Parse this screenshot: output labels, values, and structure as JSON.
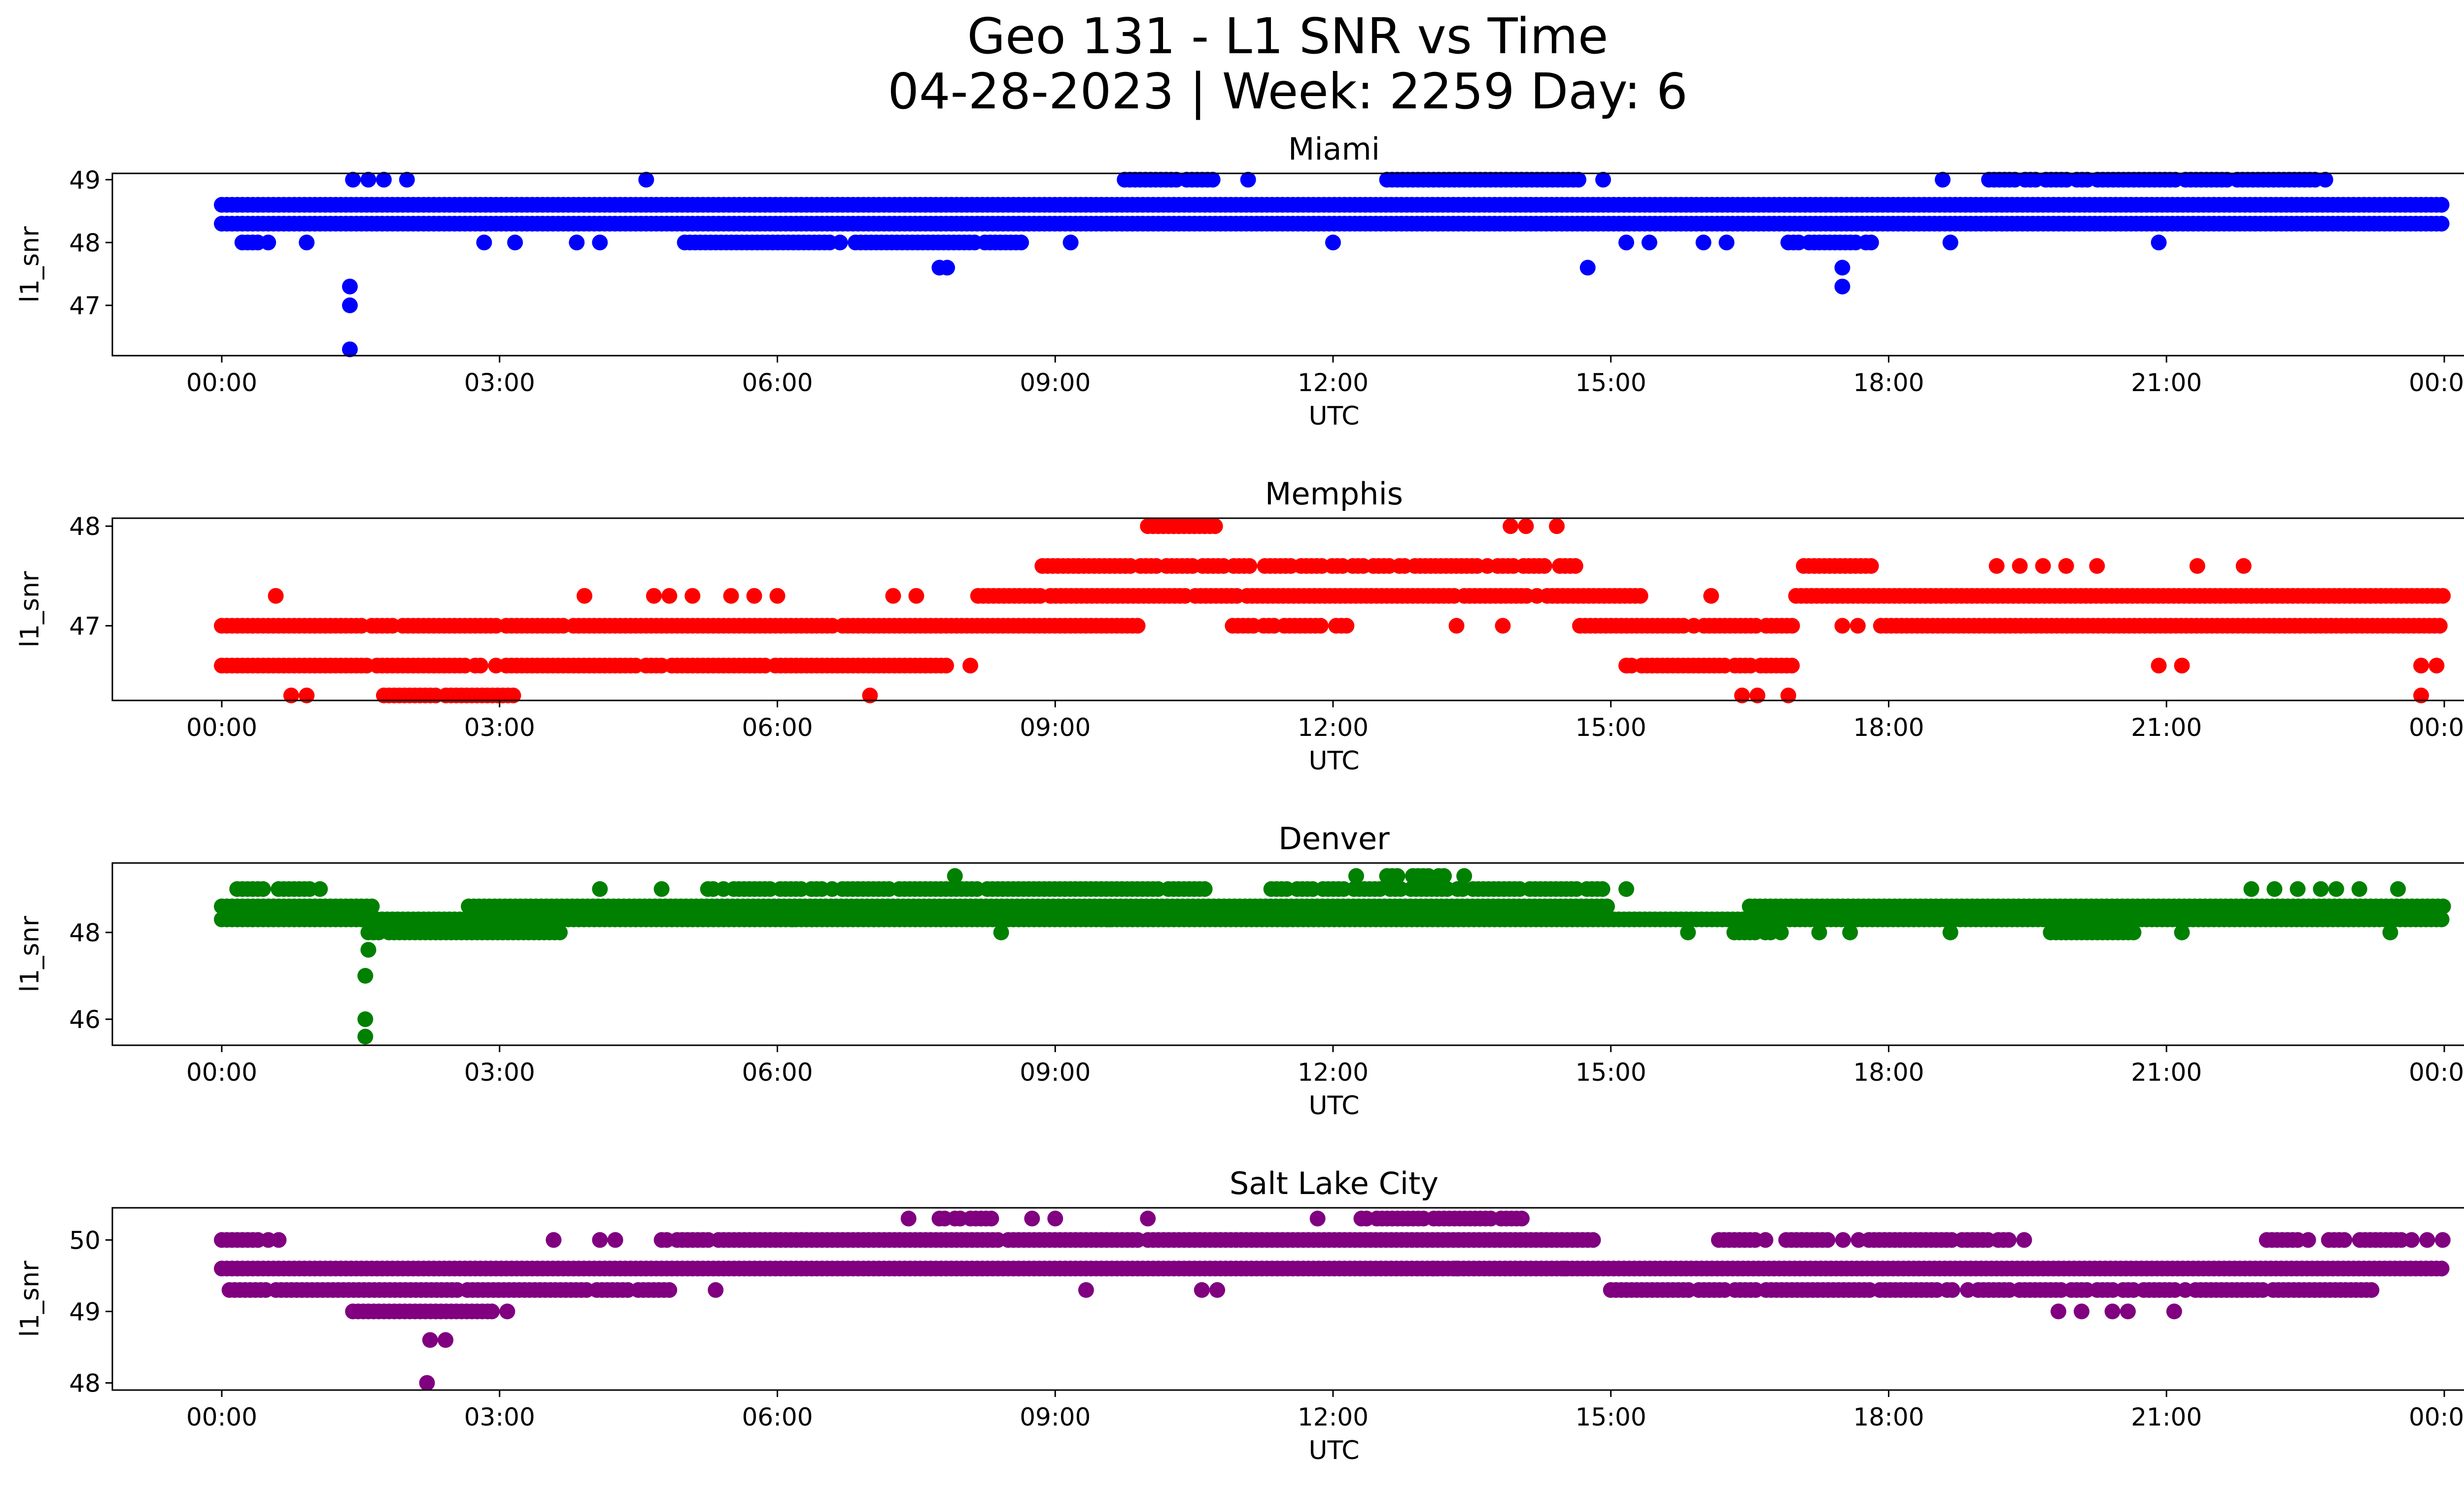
{
  "figure": {
    "title_line1": "Geo 131 - L1 SNR vs Time",
    "title_line2": "04-28-2023 | Week: 2259 Day: 6"
  },
  "chart_data": [
    {
      "type": "scatter",
      "title": "Miami",
      "xlabel": "UTC",
      "ylabel": "l1_snr",
      "color": "#0000ff",
      "xlim": [
        "00:00",
        "24:00"
      ],
      "ylim": [
        46.2,
        49.1
      ],
      "x_ticks": [
        "00:00",
        "03:00",
        "06:00",
        "09:00",
        "12:00",
        "15:00",
        "18:00",
        "21:00",
        "00:00"
      ],
      "y_ticks": [
        47,
        48,
        49
      ],
      "levels": [
        49.0,
        48.6,
        48.3,
        48.0
      ],
      "bands": [
        {
          "y": 48.6,
          "from": "00:00",
          "to": "24:00",
          "density": 1.0
        },
        {
          "y": 48.3,
          "from": "00:00",
          "to": "24:00",
          "density": 1.0
        },
        {
          "y": 48.0,
          "from": "00:10",
          "to": "00:40",
          "density": 0.5
        },
        {
          "y": 48.0,
          "from": "05:00",
          "to": "08:45",
          "density": 0.95
        },
        {
          "y": 48.0,
          "from": "16:55",
          "to": "17:50",
          "density": 0.9
        },
        {
          "y": 49.0,
          "from": "09:45",
          "to": "10:45",
          "density": 0.9
        },
        {
          "y": 49.0,
          "from": "12:35",
          "to": "14:40",
          "density": 0.95
        },
        {
          "y": 49.0,
          "from": "19:05",
          "to": "22:50",
          "density": 0.9
        }
      ],
      "points": [
        {
          "t": "01:25",
          "v": 49.0
        },
        {
          "t": "01:35",
          "v": 49.0
        },
        {
          "t": "01:45",
          "v": 49.0
        },
        {
          "t": "02:00",
          "v": 49.0
        },
        {
          "t": "04:35",
          "v": 49.0
        },
        {
          "t": "11:05",
          "v": 49.0
        },
        {
          "t": "14:55",
          "v": 49.0
        },
        {
          "t": "18:35",
          "v": 49.0
        },
        {
          "t": "02:50",
          "v": 48.0
        },
        {
          "t": "03:10",
          "v": 48.0
        },
        {
          "t": "03:50",
          "v": 48.0
        },
        {
          "t": "04:05",
          "v": 48.0
        },
        {
          "t": "09:10",
          "v": 48.0
        },
        {
          "t": "12:00",
          "v": 48.0
        },
        {
          "t": "15:10",
          "v": 48.0
        },
        {
          "t": "15:25",
          "v": 48.0
        },
        {
          "t": "16:00",
          "v": 48.0
        },
        {
          "t": "16:15",
          "v": 48.0
        },
        {
          "t": "18:40",
          "v": 48.0
        },
        {
          "t": "20:55",
          "v": 48.0
        },
        {
          "t": "00:55",
          "v": 48.0
        },
        {
          "t": "01:23",
          "v": 47.3
        },
        {
          "t": "01:23",
          "v": 47.0
        },
        {
          "t": "01:23",
          "v": 46.3
        },
        {
          "t": "07:45",
          "v": 47.6
        },
        {
          "t": "07:50",
          "v": 47.6
        },
        {
          "t": "14:45",
          "v": 47.6
        },
        {
          "t": "17:30",
          "v": 47.6
        },
        {
          "t": "17:30",
          "v": 47.3
        }
      ]
    },
    {
      "type": "scatter",
      "title": "Memphis",
      "xlabel": "UTC",
      "ylabel": "l1_snr",
      "color": "#ff0000",
      "xlim": [
        "00:00",
        "24:00"
      ],
      "ylim": [
        46.25,
        48.08
      ],
      "x_ticks": [
        "00:00",
        "03:00",
        "06:00",
        "09:00",
        "12:00",
        "15:00",
        "18:00",
        "21:00",
        "00:00"
      ],
      "y_ticks": [
        47,
        48
      ],
      "levels": [
        48.0,
        47.6,
        47.3,
        47.0,
        46.6,
        46.3
      ],
      "bands": [
        {
          "y": 47.0,
          "from": "00:00",
          "to": "09:55",
          "density": 0.95
        },
        {
          "y": 46.6,
          "from": "00:00",
          "to": "07:50",
          "density": 0.95
        },
        {
          "y": 47.3,
          "from": "08:10",
          "to": "15:20",
          "density": 0.95
        },
        {
          "y": 47.6,
          "from": "08:45",
          "to": "14:40",
          "density": 0.85
        },
        {
          "y": 48.0,
          "from": "10:00",
          "to": "10:45",
          "density": 1.0
        },
        {
          "y": 47.0,
          "from": "10:55",
          "to": "12:10",
          "density": 0.8
        },
        {
          "y": 47.0,
          "from": "14:40",
          "to": "17:00",
          "density": 0.95
        },
        {
          "y": 46.6,
          "from": "15:10",
          "to": "17:00",
          "density": 0.9
        },
        {
          "y": 47.3,
          "from": "17:00",
          "to": "24:00",
          "density": 1.0
        },
        {
          "y": 47.0,
          "from": "17:55",
          "to": "24:00",
          "density": 1.0
        },
        {
          "y": 47.6,
          "from": "17:05",
          "to": "17:50",
          "density": 0.9
        },
        {
          "y": 46.3,
          "from": "01:45",
          "to": "03:10",
          "density": 0.9
        }
      ],
      "points": [
        {
          "t": "00:35",
          "v": 47.3
        },
        {
          "t": "03:55",
          "v": 47.3
        },
        {
          "t": "04:40",
          "v": 47.3
        },
        {
          "t": "04:50",
          "v": 47.3
        },
        {
          "t": "05:05",
          "v": 47.3
        },
        {
          "t": "05:30",
          "v": 47.3
        },
        {
          "t": "05:45",
          "v": 47.3
        },
        {
          "t": "06:00",
          "v": 47.3
        },
        {
          "t": "07:15",
          "v": 47.3
        },
        {
          "t": "07:30",
          "v": 47.3
        },
        {
          "t": "16:05",
          "v": 47.3
        },
        {
          "t": "00:45",
          "v": 46.3
        },
        {
          "t": "00:55",
          "v": 46.3
        },
        {
          "t": "07:00",
          "v": 46.3
        },
        {
          "t": "16:25",
          "v": 46.3
        },
        {
          "t": "16:35",
          "v": 46.3
        },
        {
          "t": "16:55",
          "v": 46.3
        },
        {
          "t": "23:45",
          "v": 46.3
        },
        {
          "t": "08:05",
          "v": 46.6
        },
        {
          "t": "20:55",
          "v": 46.6
        },
        {
          "t": "21:10",
          "v": 46.6
        },
        {
          "t": "23:45",
          "v": 46.6
        },
        {
          "t": "23:55",
          "v": 46.6
        },
        {
          "t": "13:20",
          "v": 47.0
        },
        {
          "t": "13:50",
          "v": 47.0
        },
        {
          "t": "17:30",
          "v": 47.0
        },
        {
          "t": "17:40",
          "v": 47.0
        },
        {
          "t": "09:15",
          "v": 47.6
        },
        {
          "t": "19:10",
          "v": 47.6
        },
        {
          "t": "19:25",
          "v": 47.6
        },
        {
          "t": "19:40",
          "v": 47.6
        },
        {
          "t": "19:55",
          "v": 47.6
        },
        {
          "t": "20:15",
          "v": 47.6
        },
        {
          "t": "21:20",
          "v": 47.6
        },
        {
          "t": "21:50",
          "v": 47.6
        },
        {
          "t": "13:55",
          "v": 48.0
        },
        {
          "t": "14:05",
          "v": 48.0
        },
        {
          "t": "14:25",
          "v": 48.0
        }
      ]
    },
    {
      "type": "scatter",
      "title": "Denver",
      "xlabel": "UTC",
      "ylabel": "l1_snr",
      "color": "#008000",
      "xlim": [
        "00:00",
        "24:00"
      ],
      "ylim": [
        45.4,
        49.6
      ],
      "x_ticks": [
        "00:00",
        "03:00",
        "06:00",
        "09:00",
        "12:00",
        "15:00",
        "18:00",
        "21:00",
        "00:00"
      ],
      "y_ticks": [
        46,
        48
      ],
      "levels": [
        49.3,
        49.0,
        48.6,
        48.3,
        48.0
      ],
      "bands": [
        {
          "y": 48.6,
          "from": "00:00",
          "to": "01:40",
          "density": 1.0
        },
        {
          "y": 48.3,
          "from": "00:00",
          "to": "24:00",
          "density": 1.0
        },
        {
          "y": 48.0,
          "from": "01:35",
          "to": "03:40",
          "density": 0.95
        },
        {
          "y": 48.6,
          "from": "02:40",
          "to": "15:00",
          "density": 1.0
        },
        {
          "y": 49.0,
          "from": "05:15",
          "to": "10:40",
          "density": 0.95
        },
        {
          "y": 48.6,
          "from": "16:30",
          "to": "24:00",
          "density": 1.0
        },
        {
          "y": 48.0,
          "from": "16:20",
          "to": "16:55",
          "density": 0.8
        },
        {
          "y": 48.0,
          "from": "19:45",
          "to": "20:40",
          "density": 0.95
        },
        {
          "y": 49.0,
          "from": "00:10",
          "to": "01:05",
          "density": 0.7
        },
        {
          "y": 49.0,
          "from": "11:20",
          "to": "14:55",
          "density": 0.9
        },
        {
          "y": 49.3,
          "from": "12:35",
          "to": "13:15",
          "density": 0.8
        }
      ],
      "points": [
        {
          "t": "01:35",
          "v": 47.6
        },
        {
          "t": "01:33",
          "v": 47.0
        },
        {
          "t": "01:33",
          "v": 46.0
        },
        {
          "t": "01:33",
          "v": 45.6
        },
        {
          "t": "07:55",
          "v": 49.3
        },
        {
          "t": "12:15",
          "v": 49.3
        },
        {
          "t": "13:25",
          "v": 49.3
        },
        {
          "t": "04:05",
          "v": 49.0
        },
        {
          "t": "04:45",
          "v": 49.0
        },
        {
          "t": "15:10",
          "v": 49.0
        },
        {
          "t": "21:55",
          "v": 49.0
        },
        {
          "t": "22:10",
          "v": 49.0
        },
        {
          "t": "22:25",
          "v": 49.0
        },
        {
          "t": "22:40",
          "v": 49.0
        },
        {
          "t": "22:50",
          "v": 49.0
        },
        {
          "t": "23:05",
          "v": 49.0
        },
        {
          "t": "23:30",
          "v": 49.0
        },
        {
          "t": "08:25",
          "v": 48.0
        },
        {
          "t": "15:50",
          "v": 48.0
        },
        {
          "t": "17:15",
          "v": 48.0
        },
        {
          "t": "17:35",
          "v": 48.0
        },
        {
          "t": "18:40",
          "v": 48.0
        },
        {
          "t": "21:10",
          "v": 48.0
        },
        {
          "t": "23:25",
          "v": 48.0
        },
        {
          "t": "06:10",
          "v": 48.3
        },
        {
          "t": "09:35",
          "v": 48.3
        },
        {
          "t": "11:30",
          "v": 48.3
        }
      ]
    },
    {
      "type": "scatter",
      "title": "Salt Lake City",
      "xlabel": "UTC",
      "ylabel": "l1_snr",
      "color": "#800080",
      "xlim": [
        "00:00",
        "24:00"
      ],
      "ylim": [
        47.9,
        50.45
      ],
      "x_ticks": [
        "00:00",
        "03:00",
        "06:00",
        "09:00",
        "12:00",
        "15:00",
        "18:00",
        "21:00",
        "00:00"
      ],
      "y_ticks": [
        48,
        49,
        50
      ],
      "levels": [
        50.3,
        50.0,
        49.6,
        49.3,
        49.0
      ],
      "bands": [
        {
          "y": 49.6,
          "from": "00:00",
          "to": "24:00",
          "density": 1.0
        },
        {
          "y": 49.3,
          "from": "00:05",
          "to": "04:50",
          "density": 0.95
        },
        {
          "y": 49.0,
          "from": "01:25",
          "to": "02:55",
          "density": 1.0
        },
        {
          "y": 50.0,
          "from": "00:00",
          "to": "00:40",
          "density": 0.8
        },
        {
          "y": 50.0,
          "from": "04:45",
          "to": "14:50",
          "density": 0.97
        },
        {
          "y": 49.3,
          "from": "15:00",
          "to": "23:15",
          "density": 0.9
        },
        {
          "y": 50.0,
          "from": "16:10",
          "to": "19:30",
          "density": 0.75
        },
        {
          "y": 50.0,
          "from": "22:05",
          "to": "24:00",
          "density": 0.8
        },
        {
          "y": 50.3,
          "from": "12:15",
          "to": "14:05",
          "density": 0.9
        },
        {
          "y": 50.3,
          "from": "07:45",
          "to": "08:20",
          "density": 0.9
        }
      ],
      "points": [
        {
          "t": "02:15",
          "v": 48.6
        },
        {
          "t": "02:25",
          "v": 48.6
        },
        {
          "t": "02:13",
          "v": 48.0
        },
        {
          "t": "02:55",
          "v": 49.0
        },
        {
          "t": "03:05",
          "v": 49.0
        },
        {
          "t": "19:50",
          "v": 49.0
        },
        {
          "t": "20:05",
          "v": 49.0
        },
        {
          "t": "20:25",
          "v": 49.0
        },
        {
          "t": "20:35",
          "v": 49.0
        },
        {
          "t": "21:05",
          "v": 49.0
        },
        {
          "t": "03:35",
          "v": 50.0
        },
        {
          "t": "04:05",
          "v": 50.0
        },
        {
          "t": "04:15",
          "v": 50.0
        },
        {
          "t": "07:25",
          "v": 50.3
        },
        {
          "t": "08:45",
          "v": 50.3
        },
        {
          "t": "09:00",
          "v": 50.3
        },
        {
          "t": "10:00",
          "v": 50.3
        },
        {
          "t": "11:50",
          "v": 50.3
        },
        {
          "t": "05:20",
          "v": 49.3
        },
        {
          "t": "09:20",
          "v": 49.3
        },
        {
          "t": "10:35",
          "v": 49.3
        },
        {
          "t": "10:45",
          "v": 49.3
        },
        {
          "t": "13:05",
          "v": 49.6
        },
        {
          "t": "13:20",
          "v": 49.6
        },
        {
          "t": "14:30",
          "v": 49.6
        }
      ]
    }
  ]
}
